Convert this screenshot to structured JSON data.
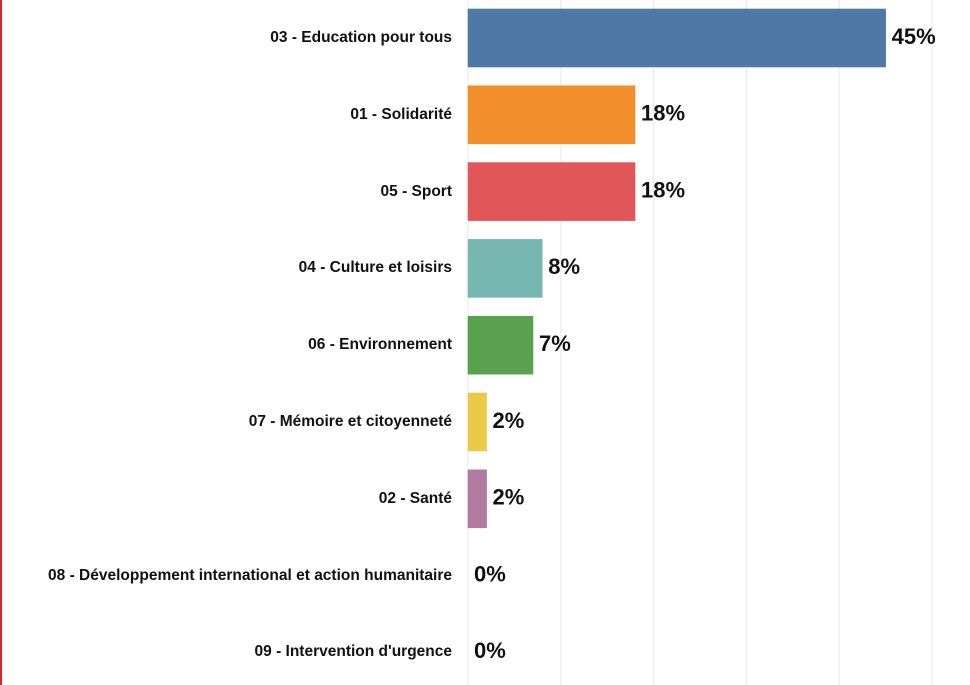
{
  "chart_data": {
    "type": "bar",
    "orientation": "horizontal",
    "categories": [
      "03 - Education pour tous",
      "01 - Solidarité",
      "05 - Sport",
      "04 - Culture et loisirs",
      "06 - Environnement",
      "07 - Mémoire et citoyenneté",
      "02 - Santé",
      "08 - Développement international et action humanitaire",
      "09 - Intervention d'urgence"
    ],
    "values": [
      45,
      18,
      18,
      8,
      7,
      2,
      2,
      0,
      0
    ],
    "value_labels": [
      "45%",
      "18%",
      "18%",
      "8%",
      "7%",
      "2%",
      "2%",
      "0%",
      "0%"
    ],
    "colors": [
      "#4e79a7",
      "#f28e2b",
      "#e15759",
      "#76b7b2",
      "#59a14f",
      "#edc948",
      "#b07aa1",
      "#ff9da7",
      "#9c755f"
    ],
    "xlim": [
      0,
      50
    ],
    "xticks": [
      0,
      10,
      20,
      30,
      40,
      50
    ],
    "grid": true
  }
}
